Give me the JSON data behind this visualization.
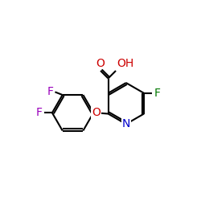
{
  "bg_color": "#ffffff",
  "bond_color": "#000000",
  "nitrogen_color": "#0000cc",
  "oxygen_color": "#cc0000",
  "fluorine_left_color": "#9900bb",
  "fluorine_right_color": "#007700",
  "line_width": 1.5,
  "font_size": 9,
  "fig_size": [
    2.5,
    2.5
  ],
  "dpi": 100,
  "xlim": [
    0,
    10
  ],
  "ylim": [
    0,
    10
  ]
}
